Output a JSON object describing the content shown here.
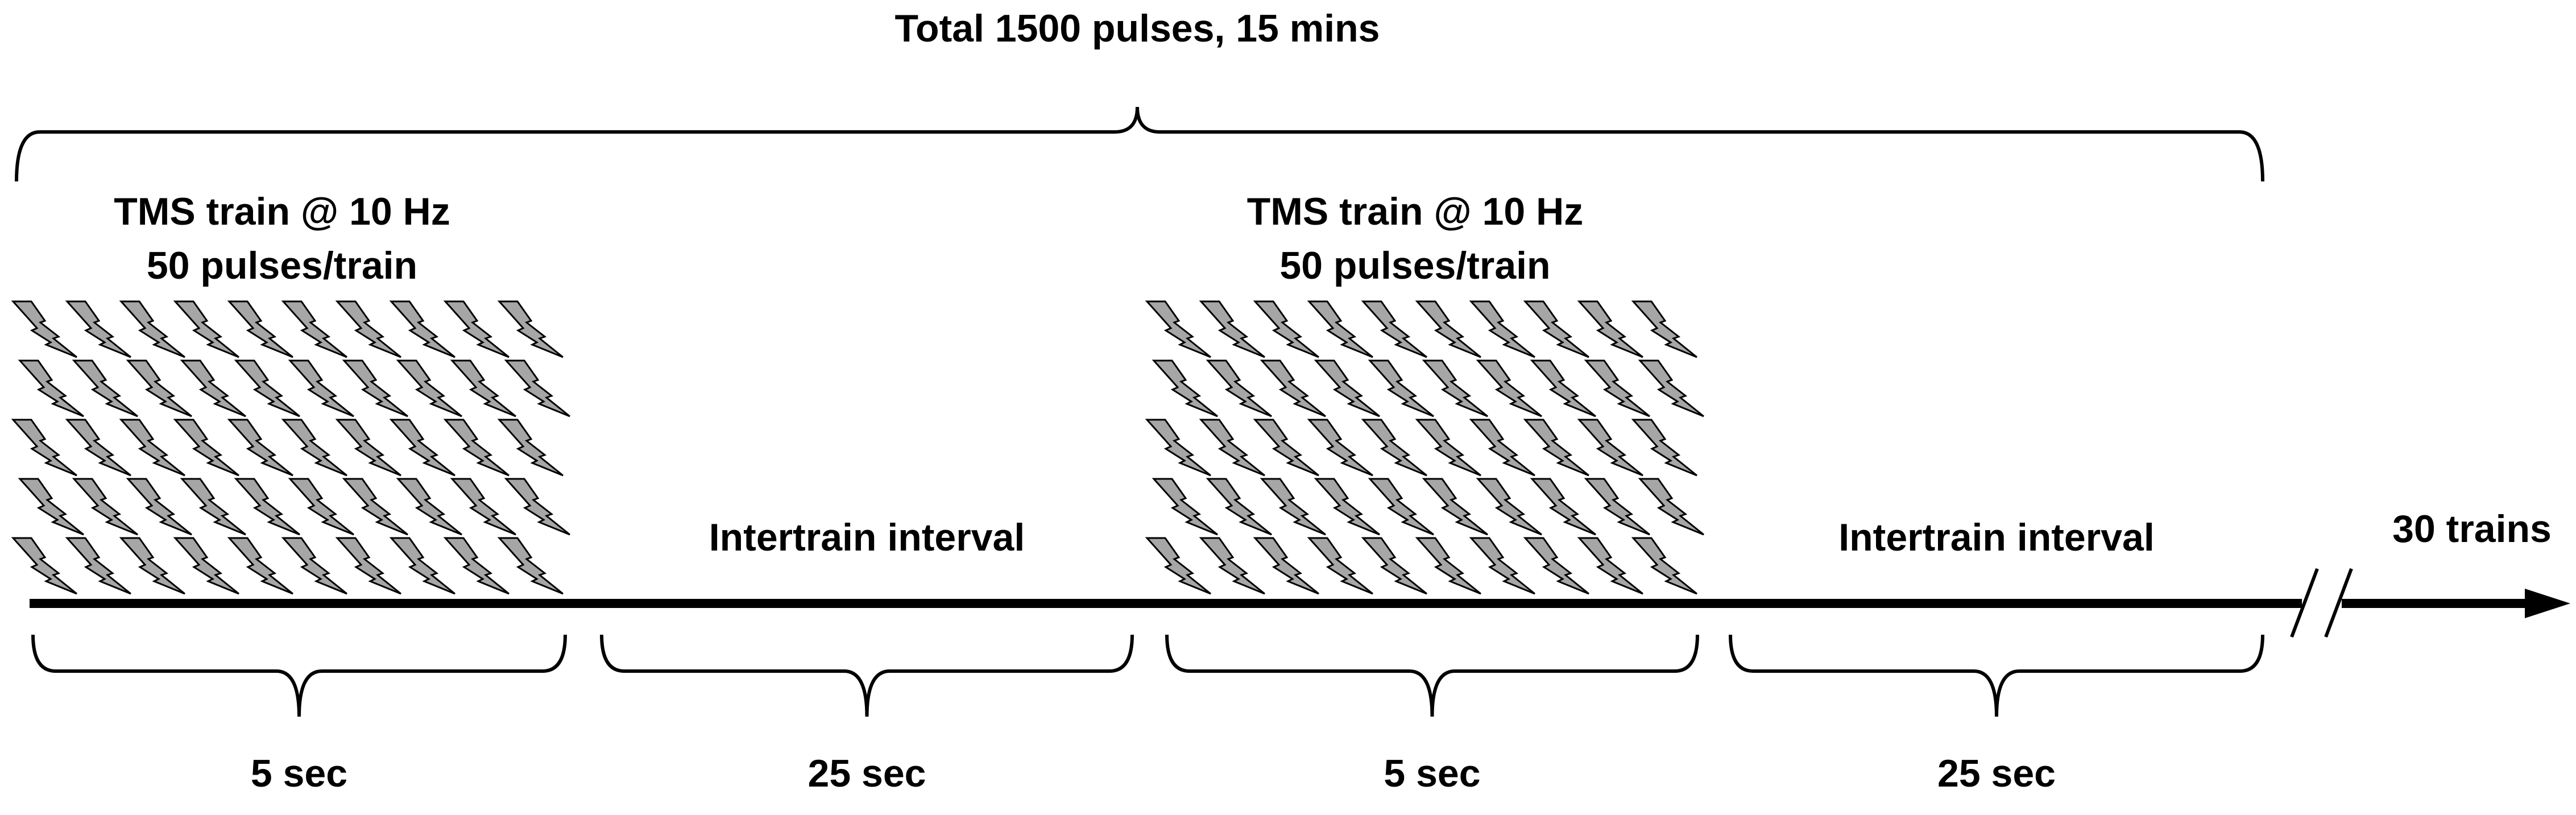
{
  "title": "Total 1500 pulses, 15 mins",
  "segments": [
    {
      "label": [
        "TMS train @ 10 Hz",
        "50 pulses/train"
      ],
      "duration": "5 sec"
    },
    {
      "label": [
        "Intertrain interval"
      ],
      "duration": "25 sec"
    },
    {
      "label": [
        "TMS train @ 10 Hz",
        "50 pulses/train"
      ],
      "duration": "5 sec"
    },
    {
      "label": [
        "Intertrain interval"
      ],
      "duration": "25 sec"
    }
  ],
  "end_label": "30 trains"
}
